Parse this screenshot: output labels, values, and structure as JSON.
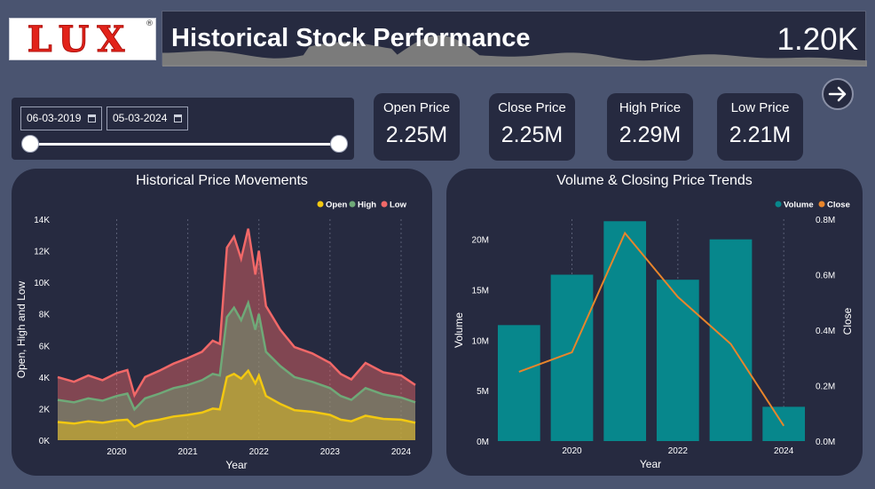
{
  "logo": {
    "text": "LUX",
    "registered": "®"
  },
  "header": {
    "title": "Historical Stock Performance",
    "value": "1.20K"
  },
  "date_range": {
    "start": "06-03-2019",
    "end": "05-03-2024"
  },
  "kpis": [
    {
      "label": "Open Price",
      "value": "2.25M"
    },
    {
      "label": "Close Price",
      "value": "2.25M"
    },
    {
      "label": "High Price",
      "value": "2.29M"
    },
    {
      "label": "Low Price",
      "value": "2.21M"
    }
  ],
  "colors": {
    "open": "#f2c811",
    "high": "#6fa978",
    "low": "#f16868",
    "volume": "#07878c",
    "close": "#e8852b"
  },
  "chart_data": [
    {
      "type": "area",
      "title": "Historical Price Movements",
      "xlabel": "Year",
      "ylabel": "Open, High and Low",
      "x_ticks": [
        "2020",
        "2021",
        "2022",
        "2023",
        "2024"
      ],
      "y_ticks": [
        "0K",
        "2K",
        "4K",
        "6K",
        "8K",
        "10K",
        "12K",
        "14K"
      ],
      "ylim": [
        0,
        14000
      ],
      "xlim": [
        2019.17,
        2024.2
      ],
      "legend": "top-right",
      "x": [
        2019.17,
        2019.4,
        2019.6,
        2019.8,
        2020.0,
        2020.15,
        2020.25,
        2020.4,
        2020.6,
        2020.8,
        2021.0,
        2021.2,
        2021.35,
        2021.45,
        2021.55,
        2021.65,
        2021.75,
        2021.85,
        2021.95,
        2022.0,
        2022.1,
        2022.3,
        2022.5,
        2022.75,
        2023.0,
        2023.15,
        2023.3,
        2023.5,
        2023.75,
        2024.0,
        2024.2
      ],
      "series": [
        {
          "name": "Open",
          "values": [
            1150,
            1050,
            1200,
            1100,
            1250,
            1300,
            850,
            1150,
            1300,
            1500,
            1600,
            1750,
            2000,
            1950,
            4000,
            4200,
            3900,
            4400,
            3600,
            4100,
            2800,
            2300,
            1900,
            1800,
            1600,
            1300,
            1200,
            1550,
            1350,
            1300,
            1100
          ]
        },
        {
          "name": "High",
          "values": [
            2550,
            2400,
            2650,
            2500,
            2800,
            2950,
            1950,
            2650,
            2950,
            3300,
            3500,
            3800,
            4200,
            4100,
            7800,
            8400,
            7600,
            8700,
            7000,
            8000,
            5600,
            4700,
            4000,
            3700,
            3300,
            2800,
            2550,
            3300,
            2900,
            2700,
            2400
          ]
        },
        {
          "name": "Low",
          "values": [
            4000,
            3700,
            4100,
            3800,
            4250,
            4450,
            2850,
            4000,
            4400,
            4850,
            5200,
            5600,
            6300,
            6100,
            12200,
            12900,
            11500,
            13400,
            10500,
            12000,
            8500,
            7000,
            5900,
            5500,
            4900,
            4200,
            3850,
            4900,
            4300,
            4100,
            3500
          ]
        }
      ]
    },
    {
      "type": "bar",
      "title": "Volume & Closing Price Trends",
      "xlabel": "Year",
      "ylabel": "Volume",
      "ylabel_right": "Close",
      "categories": [
        "2019",
        "2020",
        "2021",
        "2022",
        "2023",
        "2024"
      ],
      "x_ticks": [
        "2020",
        "2022",
        "2024"
      ],
      "y_ticks": [
        "0M",
        "5M",
        "10M",
        "15M",
        "20M"
      ],
      "y2_ticks": [
        "0.0M",
        "0.2M",
        "0.4M",
        "0.6M",
        "0.8M"
      ],
      "ylim": [
        0,
        22000000
      ],
      "y2lim": [
        0,
        0.8
      ],
      "legend": "top-right",
      "series": [
        {
          "name": "Volume",
          "type": "bar",
          "values": [
            11500000,
            16500000,
            21800000,
            16000000,
            20000000,
            3400000
          ]
        },
        {
          "name": "Close",
          "type": "line",
          "values": [
            0.25,
            0.32,
            0.75,
            0.52,
            0.35,
            0.055
          ]
        }
      ]
    }
  ]
}
